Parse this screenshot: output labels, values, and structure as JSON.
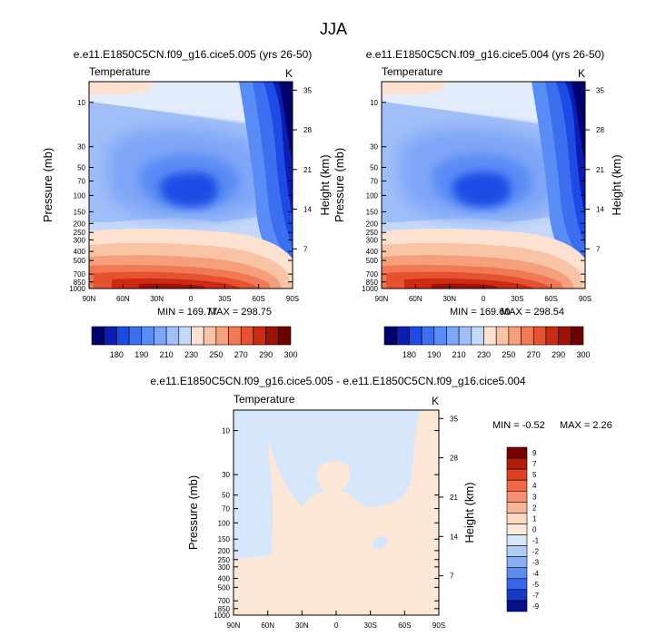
{
  "figure_title": "JJA",
  "chart_data": [
    {
      "type": "heatmap",
      "panel": "top-left",
      "title": "e.e11.E1850C5CN.f09_g16.cice5.005 (yrs 26-50)",
      "left_string": "Temperature",
      "right_string": "K",
      "xlabel": "",
      "ylabel": "Pressure (mb)",
      "y2label": "Height (km)",
      "x_ticks": [
        "90N",
        "60N",
        "30N",
        "0",
        "30S",
        "60S",
        "90S"
      ],
      "y_ticks": [
        "10",
        "30",
        "50",
        "70",
        "100",
        "150",
        "200",
        "250",
        "300",
        "400",
        "500",
        "700",
        "850",
        "1000"
      ],
      "y2_ticks": [
        "35",
        "28",
        "21",
        "14",
        "7"
      ],
      "min_label": "MIN = 169.77",
      "max_label": "MAX = 298.75",
      "min": 169.77,
      "max": 298.75,
      "colorbar_labels": [
        "180",
        "190",
        "210",
        "230",
        "250",
        "270",
        "290",
        "300"
      ]
    },
    {
      "type": "heatmap",
      "panel": "top-right",
      "title": "e.e11.E1850C5CN.f09_g16.cice5.004 (yrs 26-50)",
      "left_string": "Temperature",
      "right_string": "K",
      "xlabel": "",
      "ylabel": "Pressure (mb)",
      "y2label": "Height (km)",
      "x_ticks": [
        "90N",
        "60N",
        "30N",
        "0",
        "30S",
        "60S",
        "90S"
      ],
      "y_ticks": [
        "10",
        "30",
        "50",
        "70",
        "100",
        "150",
        "200",
        "250",
        "300",
        "400",
        "500",
        "700",
        "850",
        "1000"
      ],
      "y2_ticks": [
        "35",
        "28",
        "21",
        "14",
        "7"
      ],
      "min_label": "MIN = 169.60",
      "max_label": "MAX = 298.54",
      "min": 169.6,
      "max": 298.54,
      "colorbar_labels": [
        "180",
        "190",
        "210",
        "230",
        "250",
        "270",
        "290",
        "300"
      ]
    },
    {
      "type": "heatmap",
      "panel": "bottom",
      "title": "e.e11.E1850C5CN.f09_g16.cice5.005 - e.e11.E1850C5CN.f09_g16.cice5.004",
      "left_string": "Temperature",
      "right_string": "K",
      "xlabel": "",
      "ylabel": "Pressure (mb)",
      "y2label": "Height (km)",
      "x_ticks": [
        "90N",
        "60N",
        "30N",
        "0",
        "30S",
        "60S",
        "90S"
      ],
      "y_ticks": [
        "10",
        "30",
        "50",
        "70",
        "100",
        "150",
        "200",
        "250",
        "300",
        "400",
        "500",
        "700",
        "850",
        "1000"
      ],
      "y2_ticks": [
        "35",
        "28",
        "21",
        "14",
        "7"
      ],
      "min_label": "MIN =  -0.52",
      "max_label": "MAX =   2.26",
      "min": -0.52,
      "max": 2.26,
      "colorbar_labels": [
        "9",
        "7",
        "5",
        "4",
        "3",
        "2",
        "1",
        "0",
        "-1",
        "-2",
        "-3",
        "-4",
        "-5",
        "-7",
        "-9"
      ]
    }
  ],
  "colors": {
    "temp_scale": [
      "#00006e",
      "#0a1eb4",
      "#1e4be6",
      "#3c6ef0",
      "#5a8cf5",
      "#7ea6f7",
      "#a0bff8",
      "#c4d8f9",
      "#e2ecfb",
      "#fde2d2",
      "#f9c3a6",
      "#f4a07c",
      "#ef7a54",
      "#e6512f",
      "#cc2a12",
      "#a01005",
      "#6e0000"
    ],
    "diff_scale": [
      "#7a0000",
      "#b01e0a",
      "#e0401f",
      "#f26a45",
      "#f59070",
      "#f8b697",
      "#fbd8c2",
      "#fde8d8",
      "#d6e6fb",
      "#b0cdf7",
      "#8aaef3",
      "#5f8bef",
      "#3566ec",
      "#1838c8",
      "#050f8a"
    ]
  }
}
